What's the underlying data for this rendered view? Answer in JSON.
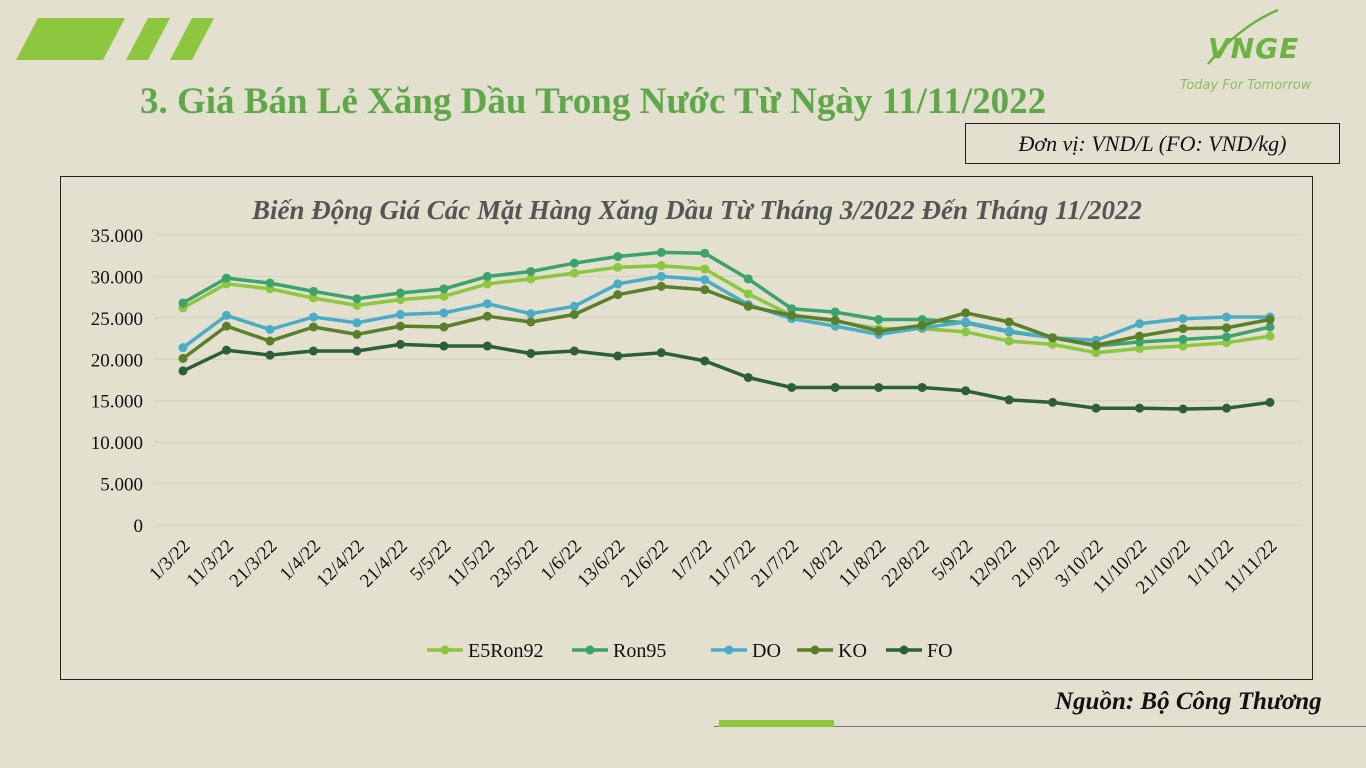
{
  "header": {
    "title": "3. Giá Bán Lẻ Xăng Dầu Trong Nước Từ Ngày 11/11/2022",
    "unit": "Đơn vị: VND/L (FO: VND/kg)"
  },
  "logo": {
    "text": "VNGE",
    "tagline": "Today For Tomorrow",
    "color": "#6cb33f"
  },
  "decor": {
    "stripe_color": "#8dc63f",
    "accent_bar_color": "#8dc63f"
  },
  "footer": {
    "source": "Nguồn: Bộ Công Thương"
  },
  "chart_data": {
    "type": "line",
    "title": "Biến Động Giá Các Mặt Hàng Xăng Dầu Từ Tháng 3/2022 Đến Tháng 11/2022",
    "xlabel": "",
    "ylabel": "",
    "ylim": [
      0,
      35000
    ],
    "yticks": [
      0,
      5000,
      10000,
      15000,
      20000,
      25000,
      30000,
      35000
    ],
    "ytick_labels": [
      "0",
      "5.000",
      "10.000",
      "15.000",
      "20.000",
      "25.000",
      "30.000",
      "35.000"
    ],
    "grid": true,
    "legend_position": "bottom",
    "categories": [
      "1/3/22",
      "11/3/22",
      "21/3/22",
      "1/4/22",
      "12/4/22",
      "21/4/22",
      "5/5/22",
      "11/5/22",
      "23/5/22",
      "1/6/22",
      "13/6/22",
      "21/6/22",
      "1/7/22",
      "11/7/22",
      "21/7/22",
      "1/8/22",
      "11/8/22",
      "22/8/22",
      "5/9/22",
      "12/9/22",
      "21/9/22",
      "3/10/22",
      "11/10/22",
      "21/10/22",
      "1/11/22",
      "11/11/22"
    ],
    "series": [
      {
        "name": "E5Ron92",
        "color": "#8dc63f",
        "values": [
          26200,
          29100,
          28500,
          27400,
          26500,
          27200,
          27600,
          29100,
          29700,
          30400,
          31100,
          31300,
          30900,
          27900,
          25300,
          24600,
          23700,
          23700,
          23300,
          22200,
          21800,
          20800,
          21300,
          21600,
          22000,
          22800
        ]
      },
      {
        "name": "Ron95",
        "color": "#3da36c",
        "values": [
          26800,
          29800,
          29200,
          28200,
          27300,
          28000,
          28500,
          30000,
          30600,
          31600,
          32400,
          32900,
          32800,
          29700,
          26100,
          25700,
          24800,
          24800,
          24400,
          23300,
          22600,
          21600,
          22100,
          22400,
          22700,
          23900
        ]
      },
      {
        "name": "DO",
        "color": "#4bacc6",
        "values": [
          21400,
          25300,
          23600,
          25100,
          24400,
          25400,
          25600,
          26700,
          25500,
          26400,
          29100,
          30000,
          29600,
          26600,
          24900,
          24000,
          23000,
          23800,
          24500,
          23400,
          22600,
          22300,
          24300,
          24900,
          25100,
          25100
        ]
      },
      {
        "name": "KO",
        "color": "#5b7f2b",
        "values": [
          20100,
          24000,
          22200,
          23900,
          23000,
          24000,
          23900,
          25200,
          24500,
          25400,
          27800,
          28800,
          28400,
          26400,
          25300,
          24700,
          23400,
          24100,
          25600,
          24500,
          22600,
          21700,
          22800,
          23700,
          23800,
          24800
        ]
      },
      {
        "name": "FO",
        "color": "#2d5e3e",
        "values": [
          18600,
          21100,
          20500,
          21000,
          21000,
          21800,
          21600,
          21600,
          20700,
          21000,
          20400,
          20800,
          19800,
          17800,
          16600,
          16600,
          16600,
          16600,
          16200,
          15100,
          14800,
          14100,
          14100,
          14000,
          14100,
          14800
        ]
      }
    ]
  }
}
